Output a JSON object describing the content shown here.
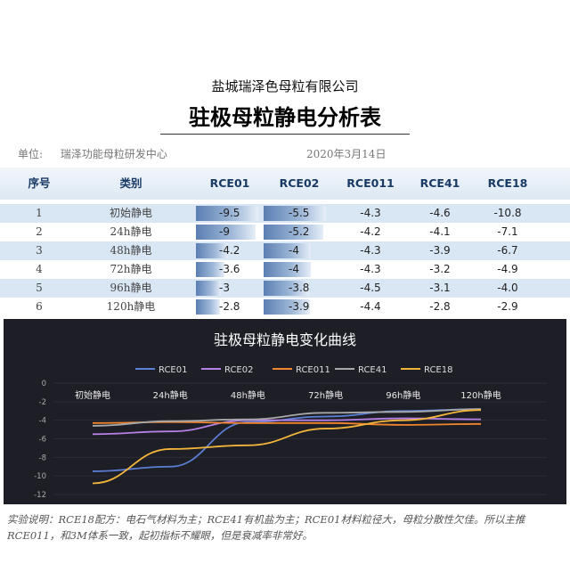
{
  "header": {
    "company": "盐城瑞泽色母粒有限公司",
    "title": "驻极母粒静电分析表",
    "unit_label": "单位:",
    "unit_value": "瑞泽功能母粒研发中心",
    "date": "2020年3月14日"
  },
  "table": {
    "columns": [
      "序号",
      "类别",
      "RCE01",
      "RCE02",
      "RCE011",
      "RCE41",
      "RCE18"
    ],
    "rows": [
      {
        "no": "1",
        "category": "初始静电",
        "values": [
          "-9.5",
          "-5.5",
          "-4.3",
          "-4.6",
          "-10.8"
        ]
      },
      {
        "no": "2",
        "category": "24h静电",
        "values": [
          "-9",
          "-5.2",
          "-4.2",
          "-4.1",
          "-7.1"
        ]
      },
      {
        "no": "3",
        "category": "48h静电",
        "values": [
          "-4.2",
          "-4",
          "-4.3",
          "-3.9",
          "-6.7"
        ]
      },
      {
        "no": "4",
        "category": "72h静电",
        "values": [
          "-3.6",
          "-4",
          "-4.3",
          "-3.2",
          "-4.9"
        ]
      },
      {
        "no": "5",
        "category": "96h静电",
        "values": [
          "-3",
          "-3.8",
          "-4.5",
          "-3.1",
          "-4.0"
        ]
      },
      {
        "no": "6",
        "category": "120h静电",
        "values": [
          "-2.8",
          "-3.9",
          "-4.4",
          "-2.8",
          "-2.9"
        ]
      }
    ]
  },
  "chart_data": {
    "type": "line",
    "title": "驻极母粒静电变化曲线",
    "categories": [
      "初始静电",
      "24h静电",
      "48h静电",
      "72h静电",
      "96h静电",
      "120h静电"
    ],
    "series": [
      {
        "name": "RCE01",
        "color": "#5b7fd6",
        "values": [
          -9.5,
          -9,
          -4.2,
          -3.6,
          -3,
          -2.8
        ]
      },
      {
        "name": "RCE02",
        "color": "#b57fe6",
        "values": [
          -5.5,
          -5.2,
          -4,
          -4,
          -3.8,
          -3.9
        ]
      },
      {
        "name": "RCE011",
        "color": "#f0852d",
        "values": [
          -4.3,
          -4.2,
          -4.3,
          -4.3,
          -4.5,
          -4.4
        ]
      },
      {
        "name": "RCE41",
        "color": "#a8a8a8",
        "values": [
          -4.6,
          -4.1,
          -3.9,
          -3.2,
          -3.1,
          -2.8
        ]
      },
      {
        "name": "RCE18",
        "color": "#f3b43a",
        "values": [
          -10.8,
          -7.1,
          -6.7,
          -4.9,
          -4.0,
          -2.9
        ]
      }
    ],
    "yticks": [
      "0",
      "-2",
      "-4",
      "-6",
      "-8",
      "-10",
      "-12"
    ],
    "ylim": [
      -12,
      0
    ],
    "legend": "top"
  },
  "note": "实验说明：RCE18配方：电石气材料为主；RCE41有机盐为主；RCE01材料粒径大，母粒分散性欠佳。所以主推RCE011，和3M体系一致，起初指标不耀眼，但是衰减率非常好。"
}
